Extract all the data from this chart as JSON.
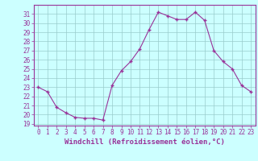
{
  "x": [
    0,
    1,
    2,
    3,
    4,
    5,
    6,
    7,
    8,
    9,
    10,
    11,
    12,
    13,
    14,
    15,
    16,
    17,
    18,
    19,
    20,
    21,
    22,
    23
  ],
  "y": [
    23,
    22.5,
    20.8,
    20.2,
    19.7,
    19.6,
    19.6,
    19.4,
    23.2,
    24.8,
    25.8,
    27.2,
    29.3,
    31.2,
    30.8,
    30.4,
    30.4,
    31.2,
    30.3,
    27.0,
    25.8,
    25.0,
    23.2,
    22.5
  ],
  "bg_color": "#ccffff",
  "line_color": "#993399",
  "marker_color": "#993399",
  "grid_color": "#99cccc",
  "axis_color": "#993399",
  "xlabel": "Windchill (Refroidissement éolien,°C)",
  "ylabel_ticks": [
    19,
    20,
    21,
    22,
    23,
    24,
    25,
    26,
    27,
    28,
    29,
    30,
    31
  ],
  "xlim": [
    -0.5,
    23.5
  ],
  "ylim": [
    18.8,
    32.0
  ],
  "xticks": [
    0,
    1,
    2,
    3,
    4,
    5,
    6,
    7,
    8,
    9,
    10,
    11,
    12,
    13,
    14,
    15,
    16,
    17,
    18,
    19,
    20,
    21,
    22,
    23
  ],
  "tick_fontsize": 5.5,
  "label_fontsize": 6.5
}
